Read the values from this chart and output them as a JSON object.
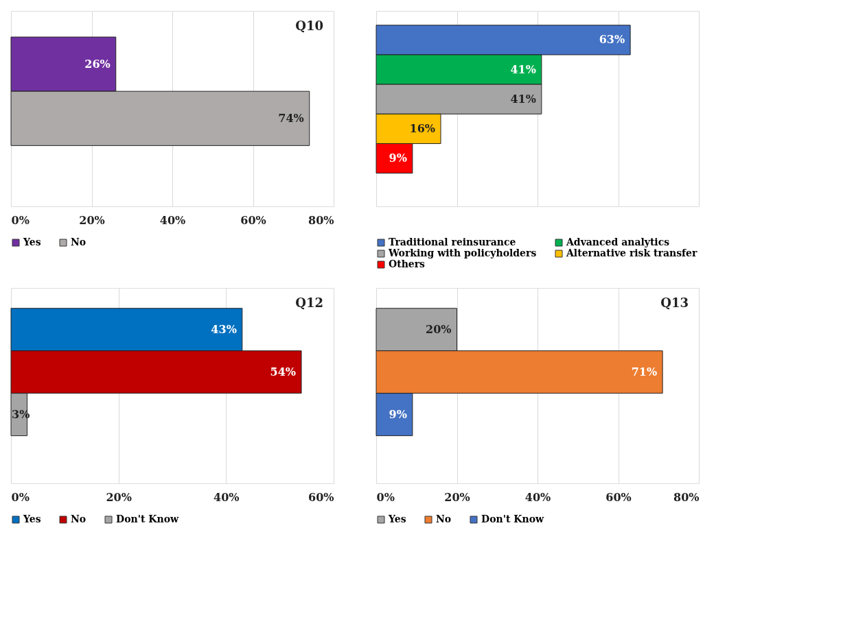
{
  "chart_data": [
    {
      "type": "bar",
      "orientation": "horizontal",
      "title": "Q10",
      "categories": [
        null
      ],
      "legend": "bottom",
      "grid": "x",
      "xlim": [
        0,
        80
      ],
      "xticks": [
        {
          "value": 0,
          "label": "0%"
        },
        {
          "value": 20,
          "label": "20%"
        },
        {
          "value": 40,
          "label": "40%"
        },
        {
          "value": 60,
          "label": "60%"
        },
        {
          "value": 80,
          "label": "80%"
        }
      ],
      "series": [
        {
          "name": "Yes",
          "color": "#7030a0",
          "values": [
            26
          ],
          "value_labels": [
            "26%"
          ]
        },
        {
          "name": "No",
          "color": "#aeaaaa",
          "values": [
            74
          ],
          "value_labels": [
            "74%"
          ]
        }
      ]
    },
    {
      "type": "bar",
      "orientation": "horizontal",
      "categories": [
        null
      ],
      "legend": "bottom",
      "grid": "x",
      "tick_labels": false,
      "xlim": [
        0,
        80
      ],
      "xticks": [
        {
          "value": 0,
          "label": null
        },
        {
          "value": 20,
          "label": null
        },
        {
          "value": 40,
          "label": null
        },
        {
          "value": 60,
          "label": null
        },
        {
          "value": 80,
          "label": null
        }
      ],
      "series": [
        {
          "name": "Traditional reinsurance",
          "color": "#4472c4",
          "values": [
            63
          ],
          "value_labels": [
            "63%"
          ]
        },
        {
          "name": "Advanced analytics",
          "color": "#00b050",
          "values": [
            41
          ],
          "value_labels": [
            "41%"
          ]
        },
        {
          "name": "Working with policyholders",
          "color": "#a5a5a5",
          "values": [
            41
          ],
          "value_labels": [
            "41%"
          ]
        },
        {
          "name": "Alternative risk transfer",
          "color": "#ffc000",
          "values": [
            16
          ],
          "value_labels": [
            "16%"
          ]
        },
        {
          "name": "Others",
          "color": "#ff0000",
          "values": [
            9
          ],
          "value_labels": [
            "9%"
          ]
        }
      ]
    },
    {
      "type": "bar",
      "orientation": "horizontal",
      "title": "Q12",
      "categories": [
        null
      ],
      "legend": "bottom",
      "grid": "x",
      "xlim": [
        0,
        60
      ],
      "xticks": [
        {
          "value": 0,
          "label": "0%"
        },
        {
          "value": 20,
          "label": "20%"
        },
        {
          "value": 40,
          "label": "40%"
        },
        {
          "value": 60,
          "label": "60%"
        }
      ],
      "series": [
        {
          "name": "Yes",
          "color": "#0070c0",
          "values": [
            43
          ],
          "value_labels": [
            "43%"
          ]
        },
        {
          "name": "No",
          "color": "#c00000",
          "values": [
            54
          ],
          "value_labels": [
            "54%"
          ]
        },
        {
          "name": "Don't Know",
          "color": "#a5a5a5",
          "values": [
            3
          ],
          "value_labels": [
            "3%"
          ]
        }
      ]
    },
    {
      "type": "bar",
      "orientation": "horizontal",
      "title": "Q13",
      "categories": [
        null
      ],
      "legend": "bottom",
      "grid": "x",
      "xlim": [
        0,
        80
      ],
      "xticks": [
        {
          "value": 0,
          "label": "0%"
        },
        {
          "value": 20,
          "label": "20%"
        },
        {
          "value": 40,
          "label": "40%"
        },
        {
          "value": 60,
          "label": "60%"
        },
        {
          "value": 80,
          "label": "80%"
        }
      ],
      "series": [
        {
          "name": "Yes",
          "color": "#a5a5a5",
          "values": [
            20
          ],
          "value_labels": [
            "20%"
          ]
        },
        {
          "name": "No",
          "color": "#ed7d31",
          "values": [
            71
          ],
          "value_labels": [
            "71%"
          ]
        },
        {
          "name": "Don't Know",
          "color": "#4472c4",
          "values": [
            9
          ],
          "value_labels": [
            "9%"
          ]
        }
      ]
    }
  ]
}
